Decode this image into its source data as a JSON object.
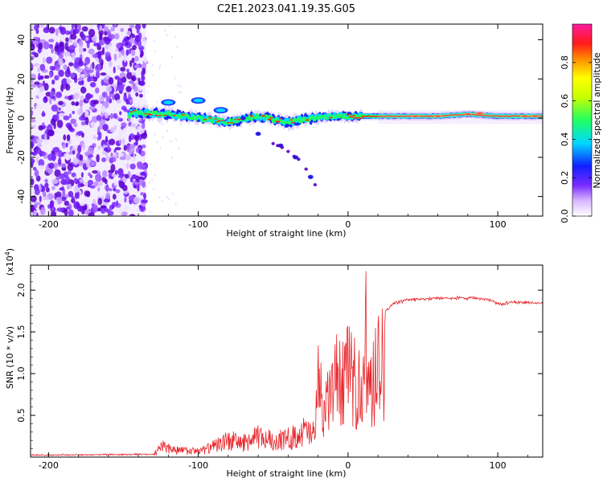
{
  "chart_data": [
    {
      "type": "heatmap",
      "title": "C2E1.2023.041.19.35.G05",
      "xlabel": "Height of straight line (km)",
      "ylabel": "Frequency (Hz)",
      "xlim": [
        -212,
        130
      ],
      "ylim": [
        -50,
        48
      ],
      "xticks": [
        -200,
        -100,
        0,
        100
      ],
      "yticks": [
        -40,
        -20,
        0,
        20,
        40
      ],
      "colorbar": {
        "label": "Normalized spectral amplitude",
        "range": [
          0.0,
          1.0
        ],
        "ticks": [
          "0.0",
          "0.2",
          "0.4",
          "0.6",
          "0.8"
        ]
      },
      "ridge": {
        "description_points_km_hz": [
          [
            -145,
            3
          ],
          [
            -120,
            2
          ],
          [
            -100,
            0
          ],
          [
            -80,
            -2
          ],
          [
            -60,
            1
          ],
          [
            -40,
            -2
          ],
          [
            -25,
            0
          ],
          [
            -10,
            1
          ],
          [
            0,
            1
          ],
          [
            20,
            1
          ],
          [
            60,
            1
          ],
          [
            80,
            2
          ],
          [
            100,
            1
          ],
          [
            130,
            1
          ]
        ],
        "secondary_branch_km_hz": [
          [
            -120,
            8
          ],
          [
            -100,
            9
          ],
          [
            -85,
            4
          ],
          [
            -70,
            0
          ],
          [
            -60,
            -8
          ],
          [
            -45,
            -14
          ],
          [
            -35,
            -20
          ],
          [
            -25,
            -30
          ]
        ]
      },
      "noise_region_km": [
        -212,
        -135
      ]
    },
    {
      "type": "line",
      "xlabel": "Height of straight line (km)",
      "ylabel": "SNR (10 * v/v)",
      "scale_note": "(x10",
      "scale_exp": "4",
      "scale_close": ")",
      "xlim": [
        -212,
        130
      ],
      "ylim": [
        0,
        2.3
      ],
      "xticks": [
        -200,
        -100,
        0,
        100
      ],
      "yticks": [
        0.5,
        1.0,
        1.5,
        2.0
      ],
      "ytick_labels": [
        "0.5",
        "1.0",
        "1.5",
        "2.0"
      ],
      "series": [
        {
          "name": "SNR",
          "color": "#e8262b",
          "envelope": {
            "x": [
              -212,
              -130,
              -125,
              -115,
              -100,
              -90,
              -80,
              -70,
              -60,
              -50,
              -40,
              -30,
              -22,
              -20,
              -15,
              -10,
              -5,
              0,
              5,
              10,
              12,
              15,
              20,
              25,
              30,
              40,
              60,
              80,
              95,
              100,
              110,
              130
            ],
            "y": [
              0.03,
              0.04,
              0.2,
              0.12,
              0.1,
              0.18,
              0.3,
              0.25,
              0.35,
              0.3,
              0.32,
              0.45,
              0.4,
              1.3,
              0.8,
              1.3,
              1.4,
              1.45,
              1.3,
              1.1,
              2.2,
              1.1,
              1.6,
              1.75,
              1.85,
              1.9,
              1.92,
              1.92,
              1.9,
              1.85,
              1.87,
              1.86
            ]
          }
        }
      ]
    }
  ]
}
